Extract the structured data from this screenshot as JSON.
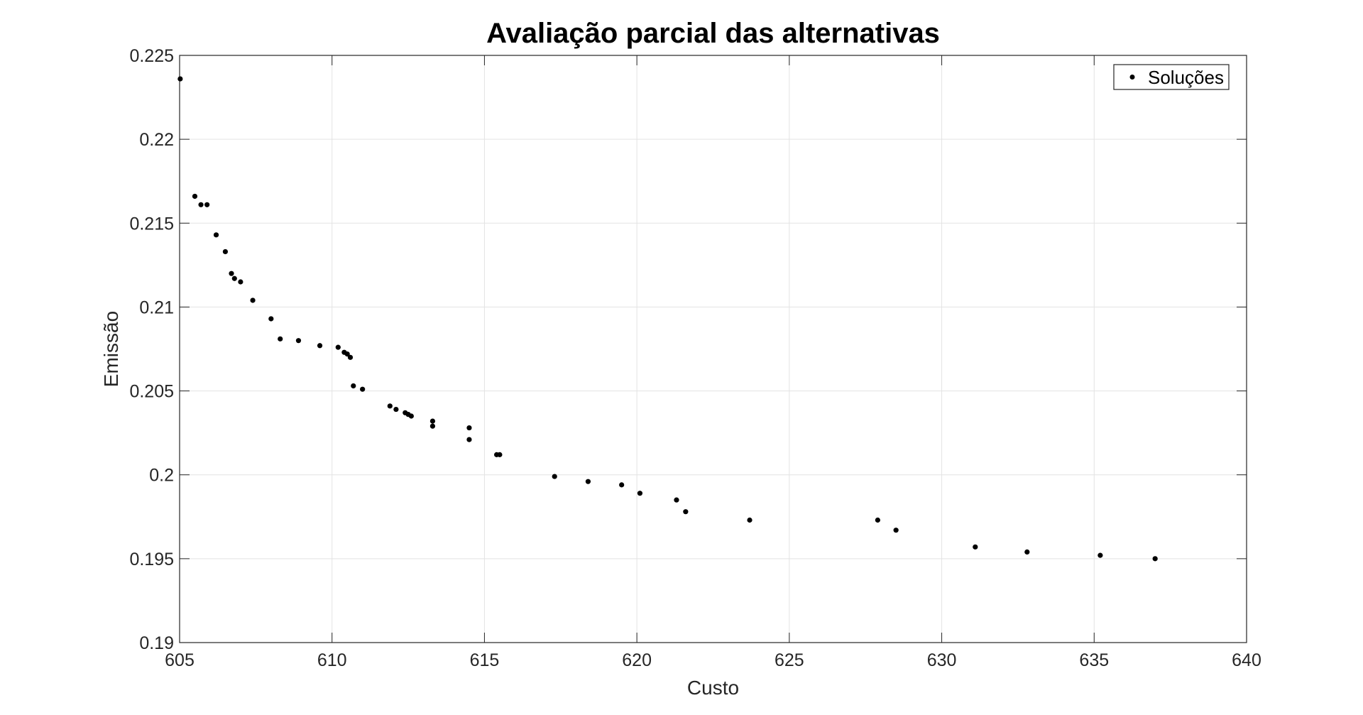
{
  "chart_data": {
    "type": "scatter",
    "title": "Avaliação parcial das alternativas",
    "xlabel": "Custo",
    "ylabel": "Emissão",
    "xlim": [
      605,
      640
    ],
    "ylim": [
      0.19,
      0.225
    ],
    "xticks": [
      605,
      610,
      615,
      620,
      625,
      630,
      635,
      640
    ],
    "xtick_labels": [
      "605",
      "610",
      "615",
      "620",
      "625",
      "630",
      "635",
      "640"
    ],
    "yticks": [
      0.19,
      0.195,
      0.2,
      0.205,
      0.21,
      0.215,
      0.22,
      0.225
    ],
    "ytick_labels": [
      "0.19",
      "0.195",
      "0.2",
      "0.205",
      "0.21",
      "0.215",
      "0.22",
      "0.225"
    ],
    "grid": true,
    "legend_position": "top-right",
    "series": [
      {
        "name": "Soluções",
        "color": "#000000",
        "marker": "dot",
        "x": [
          605.02,
          605.5,
          605.7,
          605.9,
          606.2,
          606.5,
          606.7,
          606.8,
          607.0,
          607.4,
          608.0,
          608.3,
          608.9,
          609.6,
          610.2,
          610.4,
          610.5,
          610.6,
          610.7,
          611.0,
          611.9,
          612.1,
          612.4,
          612.5,
          612.6,
          613.3,
          613.3,
          614.5,
          614.5,
          615.4,
          615.5,
          617.3,
          618.4,
          619.5,
          620.1,
          621.3,
          621.6,
          623.7,
          627.9,
          628.5,
          631.1,
          632.8,
          635.2,
          637.0
        ],
        "y": [
          0.2236,
          0.2166,
          0.2161,
          0.2161,
          0.2143,
          0.2133,
          0.212,
          0.2117,
          0.2115,
          0.2104,
          0.2093,
          0.2081,
          0.208,
          0.2077,
          0.2076,
          0.2073,
          0.2072,
          0.207,
          0.2053,
          0.2051,
          0.2041,
          0.2039,
          0.2037,
          0.2036,
          0.2035,
          0.2032,
          0.2029,
          0.2028,
          0.2021,
          0.2012,
          0.2012,
          0.1999,
          0.1996,
          0.1994,
          0.1989,
          0.1985,
          0.1978,
          0.1973,
          0.1973,
          0.1967,
          0.1957,
          0.1954,
          0.1952,
          0.195
        ]
      }
    ]
  }
}
